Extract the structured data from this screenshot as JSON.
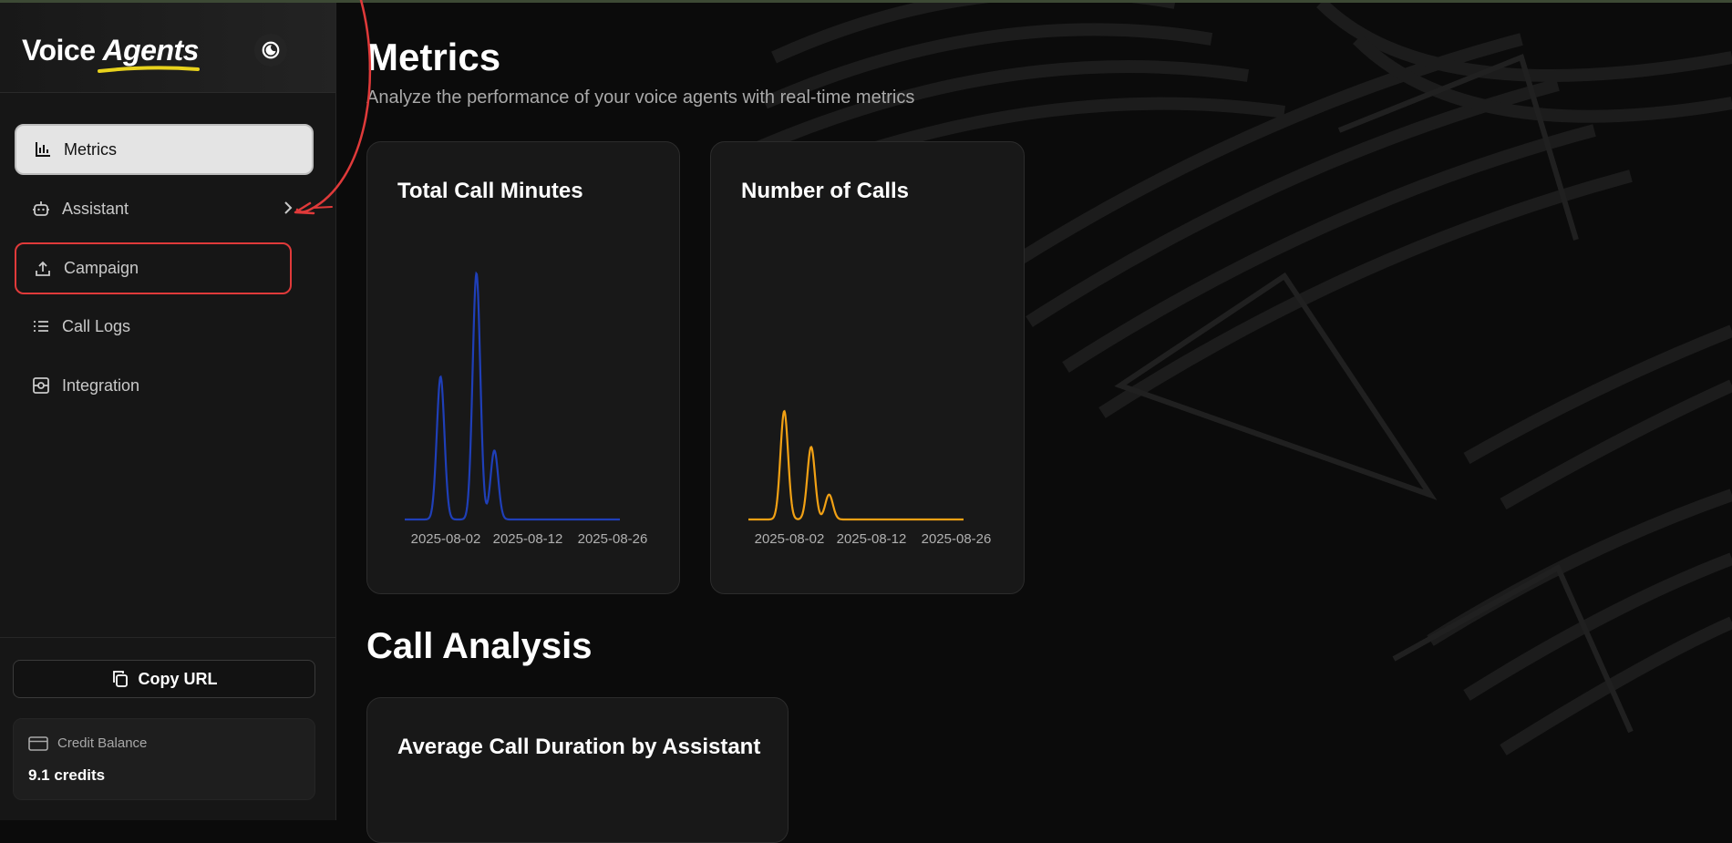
{
  "brand": {
    "word1": "Voice",
    "word2": "Agents"
  },
  "nav": {
    "items": [
      {
        "label": "Metrics",
        "icon": "bar-chart-icon",
        "active": true
      },
      {
        "label": "Assistant",
        "icon": "bot-icon",
        "has_submenu": true
      },
      {
        "label": "Campaign",
        "icon": "upload-icon",
        "highlighted": true
      },
      {
        "label": "Call Logs",
        "icon": "list-icon"
      },
      {
        "label": "Integration",
        "icon": "integration-icon"
      }
    ]
  },
  "footer": {
    "copy_label": "Copy URL",
    "credit_label": "Credit Balance",
    "credit_value": "9.1 credits"
  },
  "main": {
    "title": "Metrics",
    "subtitle": "Analyze the performance of your voice agents with real-time metrics",
    "section_title": "Call Analysis",
    "cards": {
      "minutes_title": "Total Call Minutes",
      "calls_title": "Number of Calls",
      "duration_title": "Average Call Duration by Assistant"
    }
  },
  "colors": {
    "minutes_line": "#1f3fb8",
    "calls_line": "#f2a114",
    "highlight_box": "#e03a3a"
  },
  "chart_data": [
    {
      "type": "line",
      "title": "Total Call Minutes",
      "x_ticks": [
        "2025-08-02",
        "2025-08-12",
        "2025-08-26"
      ],
      "series": [
        {
          "peaks": [
            {
              "x": "2025-08-06",
              "value": 0.58
            },
            {
              "x": "2025-08-10",
              "value": 1.0
            },
            {
              "x": "2025-08-12",
              "value": 0.28
            }
          ]
        }
      ]
    },
    {
      "type": "line",
      "title": "Number of Calls",
      "x_ticks": [
        "2025-08-02",
        "2025-08-12",
        "2025-08-26"
      ],
      "series": [
        {
          "peaks": [
            {
              "x": "2025-08-06",
              "value": 1.0
            },
            {
              "x": "2025-08-09",
              "value": 0.67
            },
            {
              "x": "2025-08-11",
              "value": 0.23
            }
          ]
        }
      ]
    }
  ]
}
